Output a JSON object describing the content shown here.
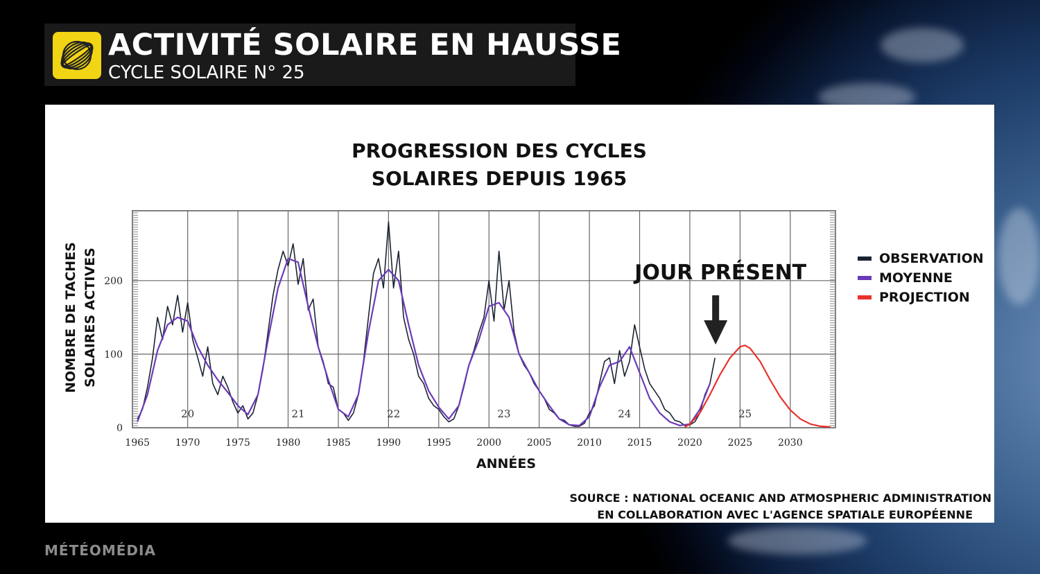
{
  "header": {
    "title": "ACTIVITÉ SOLAIRE EN HAUSSE",
    "subtitle": "CYCLE SOLAIRE N° 25"
  },
  "brand": "MÉTÉOMÉDIA",
  "source": {
    "line1": "SOURCE : NATIONAL OCEANIC AND ATMOSPHERIC ADMINISTRATION",
    "line2": "EN COLLABORATION AVEC L'AGENCE SPATIALE EUROPÉENNE"
  },
  "chart_data": {
    "type": "line",
    "title_line1": "PROGRESSION DES CYCLES",
    "title_line2": "SOLAIRES DEPUIS 1965",
    "xlabel": "ANNÉES",
    "ylabel_line1": "NOMBRE DE TACHES",
    "ylabel_line2": "SOLAIRES ACTIVES",
    "xlim": [
      1964.5,
      2034.5
    ],
    "ylim": [
      0,
      295
    ],
    "x_ticks": [
      1965,
      1970,
      1975,
      1980,
      1985,
      1990,
      1995,
      2000,
      2005,
      2010,
      2015,
      2020,
      2025,
      2030
    ],
    "y_ticks": [
      0,
      100,
      200
    ],
    "grid": true,
    "legend_position": "right",
    "annotation": {
      "text": "JOUR PRÉSENT",
      "x": 2022.5
    },
    "cycle_labels": [
      {
        "label": "20",
        "x": 1970
      },
      {
        "label": "21",
        "x": 1981
      },
      {
        "label": "22",
        "x": 1990.5
      },
      {
        "label": "23",
        "x": 2001.5
      },
      {
        "label": "24",
        "x": 2013.5
      },
      {
        "label": "25",
        "x": 2025.5
      }
    ],
    "series": [
      {
        "name": "OBSERVATION",
        "color": "#1b2333",
        "x": [
          1965,
          1965.5,
          1966,
          1966.5,
          1967,
          1967.5,
          1968,
          1968.5,
          1969,
          1969.5,
          1970,
          1970.5,
          1971,
          1971.5,
          1972,
          1972.5,
          1973,
          1973.5,
          1974,
          1974.5,
          1975,
          1975.5,
          1976,
          1976.5,
          1977,
          1977.5,
          1978,
          1978.5,
          1979,
          1979.5,
          1980,
          1980.5,
          1981,
          1981.5,
          1982,
          1982.5,
          1983,
          1983.5,
          1984,
          1984.5,
          1985,
          1985.5,
          1986,
          1986.5,
          1987,
          1987.5,
          1988,
          1988.5,
          1989,
          1989.5,
          1990,
          1990.5,
          1991,
          1991.5,
          1992,
          1992.5,
          1993,
          1993.5,
          1994,
          1994.5,
          1995,
          1995.5,
          1996,
          1996.5,
          1997,
          1997.5,
          1998,
          1998.5,
          1999,
          1999.5,
          2000,
          2000.5,
          2001,
          2001.5,
          2002,
          2002.5,
          2003,
          2003.5,
          2004,
          2004.5,
          2005,
          2005.5,
          2006,
          2006.5,
          2007,
          2007.5,
          2008,
          2008.5,
          2009,
          2009.5,
          2010,
          2010.5,
          2011,
          2011.5,
          2012,
          2012.5,
          2013,
          2013.5,
          2014,
          2014.5,
          2015,
          2015.5,
          2016,
          2016.5,
          2017,
          2017.5,
          2018,
          2018.5,
          2019,
          2019.5,
          2020,
          2020.5,
          2021,
          2021.5,
          2022,
          2022.5
        ],
        "y": [
          12,
          25,
          55,
          95,
          150,
          120,
          165,
          140,
          180,
          130,
          170,
          120,
          95,
          70,
          110,
          60,
          45,
          70,
          55,
          35,
          20,
          30,
          12,
          20,
          45,
          80,
          130,
          180,
          215,
          240,
          220,
          250,
          195,
          230,
          160,
          175,
          110,
          90,
          60,
          55,
          25,
          20,
          10,
          20,
          45,
          90,
          150,
          210,
          230,
          190,
          280,
          190,
          240,
          150,
          120,
          100,
          70,
          60,
          40,
          30,
          25,
          15,
          8,
          12,
          30,
          55,
          85,
          105,
          130,
          150,
          200,
          145,
          240,
          160,
          200,
          130,
          100,
          85,
          75,
          60,
          50,
          40,
          25,
          20,
          12,
          10,
          4,
          2,
          2,
          6,
          20,
          30,
          60,
          90,
          95,
          60,
          105,
          70,
          90,
          140,
          110,
          80,
          60,
          50,
          40,
          25,
          20,
          10,
          8,
          3,
          4,
          8,
          20,
          45,
          60,
          95
        ]
      },
      {
        "name": "MOYENNE",
        "color": "#6a3ab8",
        "x": [
          1965,
          1966,
          1967,
          1968,
          1969,
          1970,
          1971,
          1972,
          1973,
          1974,
          1975,
          1976,
          1977,
          1978,
          1979,
          1980,
          1981,
          1982,
          1983,
          1984,
          1985,
          1986,
          1987,
          1988,
          1989,
          1990,
          1991,
          1992,
          1993,
          1994,
          1995,
          1996,
          1997,
          1998,
          1999,
          2000,
          2001,
          2002,
          2003,
          2004,
          2005,
          2006,
          2007,
          2008,
          2009,
          2010,
          2011,
          2012,
          2013,
          2014,
          2015,
          2016,
          2017,
          2018,
          2019,
          2020,
          2021,
          2022
        ],
        "y": [
          8,
          45,
          105,
          140,
          150,
          145,
          110,
          85,
          65,
          48,
          30,
          18,
          45,
          120,
          190,
          230,
          225,
          165,
          110,
          65,
          25,
          15,
          45,
          130,
          200,
          215,
          200,
          140,
          85,
          50,
          28,
          12,
          30,
          85,
          120,
          165,
          170,
          150,
          100,
          75,
          50,
          30,
          12,
          4,
          3,
          15,
          55,
          85,
          90,
          110,
          75,
          40,
          20,
          8,
          3,
          5,
          25,
          60
        ]
      },
      {
        "name": "PROJECTION",
        "color": "#e8322b",
        "x": [
          2019.5,
          2020,
          2021,
          2022,
          2023,
          2024,
          2025,
          2025.5,
          2026,
          2027,
          2028,
          2029,
          2030,
          2031,
          2032,
          2033,
          2034
        ],
        "y": [
          1,
          5,
          20,
          45,
          72,
          95,
          110,
          112,
          108,
          90,
          65,
          42,
          24,
          12,
          5,
          2,
          1
        ]
      }
    ]
  }
}
